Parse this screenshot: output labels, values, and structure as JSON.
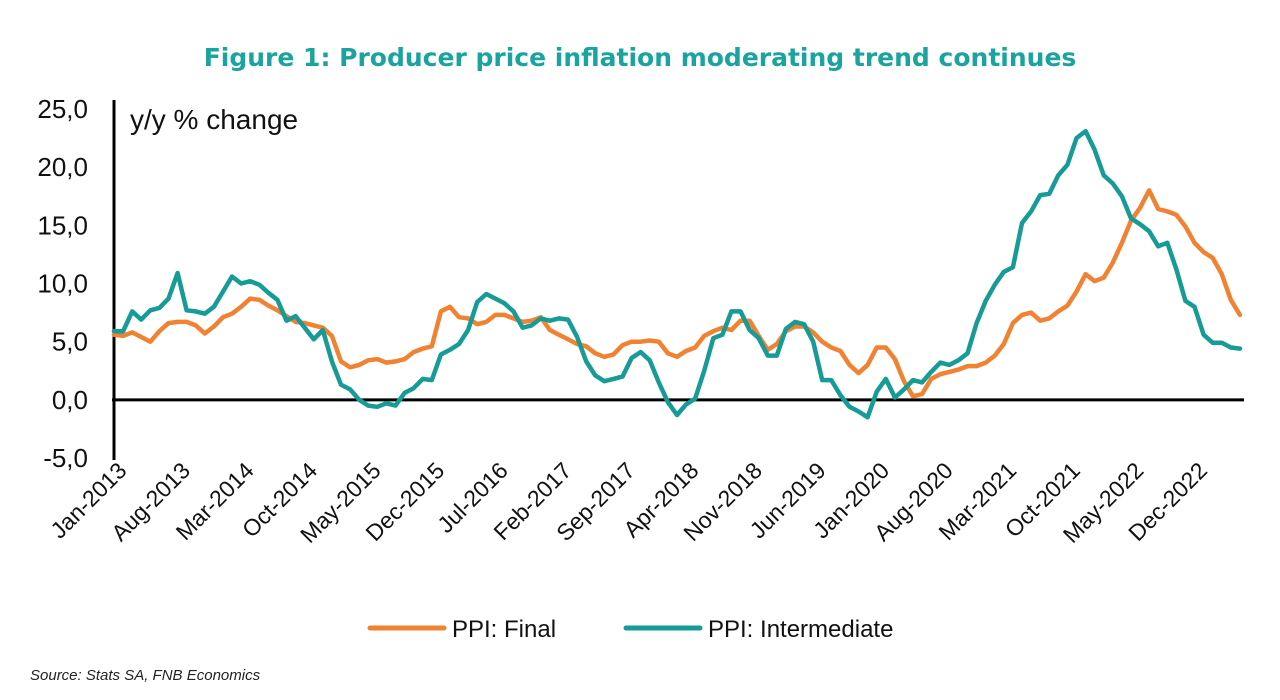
{
  "chart_data": {
    "type": "line",
    "title": "Figure 1: Producer price inflation moderating trend continues",
    "ylabel": "y/y % change",
    "xlabel": "",
    "ylim": [
      -5,
      25
    ],
    "yticks": [
      "-5,0",
      "0,0",
      "5,0",
      "10,0",
      "15,0",
      "20,0",
      "25,0"
    ],
    "ytick_values": [
      -5,
      0,
      5,
      10,
      15,
      20,
      25
    ],
    "xtick_labels": [
      "Jan-2013",
      "Aug-2013",
      "Mar-2014",
      "Oct-2014",
      "May-2015",
      "Dec-2015",
      "Jul-2016",
      "Feb-2017",
      "Sep-2017",
      "Apr-2018",
      "Nov-2018",
      "Jun-2019",
      "Jan-2020",
      "Aug-2020",
      "Mar-2021",
      "Oct-2021",
      "May-2022",
      "Dec-2022"
    ],
    "x": [
      "Jan-2013",
      "Feb-2013",
      "Mar-2013",
      "Apr-2013",
      "May-2013",
      "Jun-2013",
      "Jul-2013",
      "Aug-2013",
      "Sep-2013",
      "Oct-2013",
      "Nov-2013",
      "Dec-2013",
      "Jan-2014",
      "Feb-2014",
      "Mar-2014",
      "Apr-2014",
      "May-2014",
      "Jun-2014",
      "Jul-2014",
      "Aug-2014",
      "Sep-2014",
      "Oct-2014",
      "Nov-2014",
      "Dec-2014",
      "Jan-2015",
      "Feb-2015",
      "Mar-2015",
      "Apr-2015",
      "May-2015",
      "Jun-2015",
      "Jul-2015",
      "Aug-2015",
      "Sep-2015",
      "Oct-2015",
      "Nov-2015",
      "Dec-2015",
      "Jan-2016",
      "Feb-2016",
      "Mar-2016",
      "Apr-2016",
      "May-2016",
      "Jun-2016",
      "Jul-2016",
      "Aug-2016",
      "Sep-2016",
      "Oct-2016",
      "Nov-2016",
      "Dec-2016",
      "Jan-2017",
      "Feb-2017",
      "Mar-2017",
      "Apr-2017",
      "May-2017",
      "Jun-2017",
      "Jul-2017",
      "Aug-2017",
      "Sep-2017",
      "Oct-2017",
      "Nov-2017",
      "Dec-2017",
      "Jan-2018",
      "Feb-2018",
      "Mar-2018",
      "Apr-2018",
      "May-2018",
      "Jun-2018",
      "Jul-2018",
      "Aug-2018",
      "Sep-2018",
      "Oct-2018",
      "Nov-2018",
      "Dec-2018",
      "Jan-2019",
      "Feb-2019",
      "Mar-2019",
      "Apr-2019",
      "May-2019",
      "Jun-2019",
      "Jul-2019",
      "Aug-2019",
      "Sep-2019",
      "Oct-2019",
      "Nov-2019",
      "Dec-2019",
      "Jan-2020",
      "Feb-2020",
      "Mar-2020",
      "Apr-2020",
      "May-2020",
      "Jun-2020",
      "Jul-2020",
      "Aug-2020",
      "Sep-2020",
      "Oct-2020",
      "Nov-2020",
      "Dec-2020",
      "Jan-2021",
      "Feb-2021",
      "Mar-2021",
      "Apr-2021",
      "May-2021",
      "Jun-2021",
      "Jul-2021",
      "Aug-2021",
      "Sep-2021",
      "Oct-2021",
      "Nov-2021",
      "Dec-2021",
      "Jan-2022",
      "Feb-2022",
      "Mar-2022",
      "Apr-2022",
      "May-2022",
      "Jun-2022",
      "Jul-2022",
      "Aug-2022",
      "Sep-2022",
      "Oct-2022",
      "Nov-2022",
      "Dec-2022",
      "Jan-2023",
      "Feb-2023",
      "Mar-2023",
      "Apr-2023",
      "May-2023"
    ],
    "series": [
      {
        "name": "PPI: Final",
        "color": "#f08232",
        "values": [
          5.6,
          5.5,
          5.8,
          5.4,
          5.0,
          5.9,
          6.6,
          6.7,
          6.7,
          6.4,
          5.7,
          6.3,
          7.1,
          7.4,
          8.0,
          8.7,
          8.6,
          8.1,
          7.7,
          7.2,
          6.7,
          6.6,
          6.4,
          6.2,
          5.5,
          3.3,
          2.8,
          3.0,
          3.4,
          3.5,
          3.2,
          3.3,
          3.5,
          4.1,
          4.4,
          4.6,
          7.6,
          8.0,
          7.1,
          7.0,
          6.5,
          6.7,
          7.3,
          7.3,
          7.0,
          6.7,
          6.8,
          7.1,
          6.0,
          5.6,
          5.2,
          4.8,
          4.6,
          4.0,
          3.7,
          3.9,
          4.7,
          5.0,
          5.0,
          5.1,
          5.0,
          4.0,
          3.7,
          4.2,
          4.5,
          5.5,
          5.9,
          6.2,
          6.0,
          6.8,
          6.8,
          5.5,
          4.3,
          4.8,
          5.9,
          6.3,
          6.3,
          5.8,
          5.0,
          4.5,
          4.2,
          3.0,
          2.3,
          3.0,
          4.5,
          4.5,
          3.5,
          1.6,
          0.3,
          0.5,
          1.8,
          2.2,
          2.4,
          2.6,
          2.9,
          2.9,
          3.2,
          3.8,
          4.8,
          6.6,
          7.3,
          7.5,
          6.8,
          7.0,
          7.6,
          8.1,
          9.3,
          10.8,
          10.2,
          10.5,
          11.8,
          13.5,
          15.4,
          16.5,
          18.0,
          16.4,
          16.2,
          15.9,
          14.9,
          13.5,
          12.7,
          12.2,
          10.8,
          8.6,
          7.3
        ]
      },
      {
        "name": "PPI: Intermediate",
        "color": "#169b97",
        "values": [
          5.9,
          5.9,
          7.6,
          6.9,
          7.7,
          7.9,
          8.7,
          10.9,
          7.7,
          7.6,
          7.4,
          8.0,
          9.3,
          10.6,
          10.0,
          10.2,
          9.9,
          9.2,
          8.6,
          6.8,
          7.2,
          6.2,
          5.2,
          6.0,
          3.3,
          1.3,
          0.9,
          0.0,
          -0.5,
          -0.6,
          -0.3,
          -0.5,
          0.6,
          1.0,
          1.8,
          1.7,
          3.9,
          4.3,
          4.8,
          6.0,
          8.4,
          9.1,
          8.7,
          8.3,
          7.6,
          6.2,
          6.4,
          7.0,
          6.8,
          7.0,
          6.9,
          5.4,
          3.3,
          2.1,
          1.6,
          1.8,
          2.0,
          3.6,
          4.1,
          3.4,
          1.5,
          -0.2,
          -1.3,
          -0.4,
          0.1,
          2.5,
          5.3,
          5.6,
          7.6,
          7.6,
          6.0,
          5.3,
          3.8,
          3.8,
          6.1,
          6.7,
          6.5,
          5.0,
          1.7,
          1.7,
          0.4,
          -0.6,
          -1.0,
          -1.5,
          0.7,
          1.8,
          0.2,
          0.9,
          1.7,
          1.5,
          2.4,
          3.2,
          3.0,
          3.4,
          4.0,
          6.6,
          8.5,
          9.9,
          11.0,
          11.4,
          15.2,
          16.2,
          17.6,
          17.7,
          19.3,
          20.2,
          22.5,
          23.1,
          21.5,
          19.3,
          18.6,
          17.5,
          15.6,
          15.1,
          14.5,
          13.2,
          13.5,
          11.2,
          8.5,
          8.0,
          5.6,
          4.9,
          4.9,
          4.5,
          4.4
        ]
      }
    ],
    "legend_position": "bottom",
    "grid": false
  },
  "source": "Source: Stats SA, FNB Economics",
  "title_color": "#1aa39f"
}
